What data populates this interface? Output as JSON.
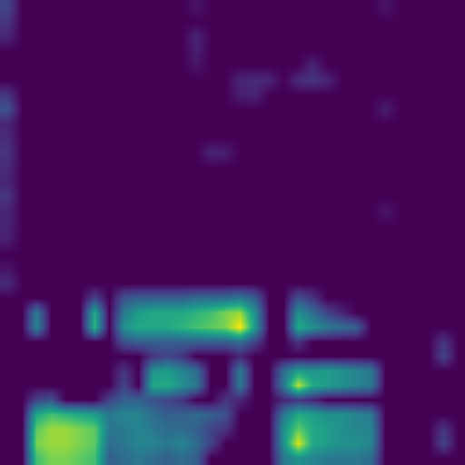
{
  "chart_data": {
    "type": "heatmap",
    "color": "Viridis",
    "tick_labels": false,
    "grid": false,
    "xlim": [
      -0.5,
      31.5
    ],
    "ylim": [
      31.5,
      -0.5
    ],
    "color_range": [
      0,
      1
    ],
    "cells": [
      [
        0.2,
        0,
        0,
        0,
        0,
        0,
        0,
        0,
        0,
        0,
        0,
        0,
        0,
        0.05,
        0,
        0,
        0,
        0,
        0,
        0,
        0,
        0,
        0,
        0,
        0,
        0,
        0.05,
        0,
        0,
        0,
        0,
        0
      ],
      [
        0.15,
        0,
        0,
        0,
        0,
        0,
        0,
        0,
        0,
        0,
        0,
        0,
        0,
        0,
        0,
        0,
        0,
        0,
        0,
        0,
        0,
        0,
        0,
        0,
        0,
        0,
        0,
        0,
        0,
        0,
        0,
        0
      ],
      [
        0.1,
        0,
        0,
        0,
        0,
        0,
        0,
        0,
        0,
        0,
        0,
        0,
        0,
        0.1,
        0,
        0,
        0,
        0,
        0,
        0,
        0,
        0,
        0,
        0,
        0,
        0,
        0,
        0,
        0,
        0,
        0,
        0
      ],
      [
        0,
        0,
        0,
        0,
        0,
        0,
        0,
        0,
        0,
        0,
        0,
        0,
        0,
        0.08,
        0,
        0,
        0,
        0,
        0,
        0,
        0,
        0,
        0,
        0,
        0,
        0,
        0,
        0,
        0,
        0,
        0,
        0
      ],
      [
        0,
        0,
        0,
        0,
        0,
        0,
        0,
        0,
        0,
        0,
        0,
        0,
        0,
        0.05,
        0,
        0,
        0,
        0,
        0,
        0,
        0,
        0.1,
        0,
        0,
        0,
        0,
        0,
        0,
        0,
        0,
        0,
        0
      ],
      [
        0,
        0,
        0,
        0,
        0,
        0,
        0,
        0,
        0,
        0,
        0,
        0,
        0,
        0,
        0,
        0,
        0.1,
        0.12,
        0.1,
        0,
        0.12,
        0.15,
        0.1,
        0,
        0,
        0,
        0,
        0,
        0,
        0,
        0,
        0
      ],
      [
        0.15,
        0,
        0,
        0,
        0,
        0,
        0,
        0,
        0,
        0,
        0,
        0,
        0,
        0,
        0,
        0,
        0.08,
        0.1,
        0,
        0,
        0,
        0,
        0,
        0,
        0,
        0,
        0,
        0,
        0,
        0,
        0,
        0
      ],
      [
        0.25,
        0,
        0,
        0,
        0,
        0,
        0,
        0,
        0,
        0,
        0,
        0,
        0,
        0,
        0,
        0,
        0,
        0,
        0,
        0,
        0,
        0,
        0,
        0,
        0,
        0,
        0.08,
        0,
        0,
        0,
        0,
        0
      ],
      [
        0.1,
        0,
        0,
        0,
        0,
        0,
        0,
        0,
        0,
        0,
        0,
        0,
        0,
        0,
        0,
        0,
        0,
        0,
        0,
        0,
        0,
        0,
        0,
        0,
        0,
        0,
        0,
        0,
        0,
        0,
        0,
        0
      ],
      [
        0.12,
        0,
        0,
        0,
        0,
        0,
        0,
        0,
        0,
        0,
        0,
        0,
        0,
        0,
        0,
        0,
        0,
        0,
        0,
        0,
        0,
        0,
        0,
        0,
        0,
        0,
        0,
        0,
        0,
        0,
        0,
        0
      ],
      [
        0.15,
        0,
        0,
        0,
        0,
        0,
        0,
        0,
        0,
        0,
        0,
        0,
        0,
        0,
        0.1,
        0.08,
        0,
        0,
        0,
        0,
        0,
        0,
        0,
        0,
        0,
        0,
        0,
        0,
        0,
        0,
        0,
        0
      ],
      [
        0.12,
        0,
        0,
        0,
        0,
        0,
        0,
        0,
        0,
        0,
        0,
        0,
        0,
        0,
        0,
        0,
        0,
        0,
        0,
        0,
        0,
        0,
        0,
        0,
        0,
        0,
        0,
        0,
        0,
        0,
        0,
        0
      ],
      [
        0.1,
        0,
        0,
        0,
        0,
        0,
        0,
        0,
        0,
        0,
        0,
        0,
        0,
        0,
        0,
        0,
        0,
        0,
        0,
        0,
        0,
        0,
        0,
        0,
        0,
        0,
        0,
        0,
        0,
        0,
        0,
        0
      ],
      [
        0.15,
        0,
        0,
        0,
        0,
        0,
        0,
        0,
        0,
        0,
        0,
        0,
        0,
        0,
        0,
        0,
        0,
        0,
        0,
        0,
        0,
        0,
        0,
        0,
        0,
        0,
        0,
        0,
        0,
        0,
        0,
        0
      ],
      [
        0.1,
        0,
        0,
        0,
        0,
        0,
        0,
        0,
        0,
        0,
        0,
        0,
        0,
        0,
        0,
        0,
        0,
        0,
        0,
        0,
        0,
        0,
        0,
        0,
        0,
        0,
        0.06,
        0,
        0,
        0,
        0,
        0
      ],
      [
        0.1,
        0,
        0,
        0,
        0,
        0,
        0,
        0,
        0,
        0,
        0,
        0,
        0,
        0,
        0,
        0,
        0,
        0,
        0,
        0,
        0,
        0,
        0,
        0,
        0,
        0,
        0,
        0,
        0,
        0,
        0,
        0
      ],
      [
        0.08,
        0,
        0,
        0,
        0,
        0,
        0,
        0,
        0,
        0,
        0,
        0,
        0,
        0,
        0,
        0,
        0,
        0,
        0,
        0,
        0,
        0,
        0,
        0,
        0,
        0,
        0,
        0,
        0,
        0,
        0,
        0
      ],
      [
        0,
        0,
        0,
        0,
        0,
        0,
        0,
        0,
        0,
        0,
        0,
        0,
        0,
        0,
        0,
        0,
        0,
        0,
        0,
        0,
        0,
        0,
        0,
        0,
        0,
        0,
        0,
        0,
        0,
        0,
        0,
        0
      ],
      [
        0.05,
        0,
        0,
        0,
        0,
        0,
        0,
        0,
        0,
        0,
        0,
        0,
        0,
        0,
        0,
        0,
        0,
        0,
        0,
        0,
        0,
        0,
        0,
        0,
        0,
        0,
        0,
        0,
        0,
        0,
        0,
        0
      ],
      [
        0.12,
        0,
        0,
        0,
        0,
        0,
        0,
        0,
        0,
        0,
        0,
        0,
        0,
        0,
        0,
        0,
        0,
        0,
        0,
        0,
        0,
        0,
        0,
        0,
        0,
        0,
        0,
        0,
        0,
        0,
        0,
        0
      ],
      [
        0,
        0,
        0,
        0,
        0,
        0,
        0.2,
        0,
        0.25,
        0.3,
        0.3,
        0.3,
        0.3,
        0.35,
        0.35,
        0.35,
        0.4,
        0.3,
        0,
        0,
        0.25,
        0.15,
        0,
        0,
        0,
        0,
        0,
        0,
        0,
        0,
        0,
        0
      ],
      [
        0,
        0,
        0.4,
        0,
        0,
        0,
        0.6,
        0,
        0.4,
        0.55,
        0.6,
        0.6,
        0.6,
        0.65,
        0.7,
        0.8,
        0.85,
        0.5,
        0,
        0,
        0.5,
        0.35,
        0.2,
        0.1,
        0,
        0,
        0,
        0,
        0,
        0,
        0,
        0
      ],
      [
        0,
        0,
        0.45,
        0,
        0,
        0,
        0.65,
        0,
        0.5,
        0.6,
        0.6,
        0.6,
        0.65,
        0.7,
        0.75,
        0.8,
        1,
        0.55,
        0,
        0,
        0.6,
        0.5,
        0.4,
        0.35,
        0.3,
        0,
        0,
        0,
        0,
        0,
        0,
        0
      ],
      [
        0,
        0,
        0,
        0,
        0,
        0,
        0,
        0,
        0.25,
        0.3,
        0.3,
        0.3,
        0.3,
        0.3,
        0.3,
        0.3,
        0.35,
        0.2,
        0,
        0,
        0.15,
        0,
        0,
        0,
        0,
        0,
        0,
        0,
        0,
        0,
        0.15,
        0
      ],
      [
        0,
        0,
        0,
        0,
        0,
        0,
        0,
        0,
        0,
        0,
        0.15,
        0.2,
        0.15,
        0,
        0,
        0,
        0.1,
        0,
        0,
        0,
        0,
        0,
        0,
        0,
        0,
        0,
        0,
        0,
        0,
        0,
        0.2,
        0
      ],
      [
        0,
        0,
        0,
        0,
        0,
        0,
        0,
        0,
        0.15,
        0,
        0.5,
        0.55,
        0.45,
        0.35,
        0,
        0,
        0.4,
        0,
        0,
        0.35,
        0.55,
        0.5,
        0.55,
        0.5,
        0.45,
        0.4,
        0,
        0,
        0,
        0,
        0,
        0
      ],
      [
        0,
        0,
        0,
        0,
        0,
        0,
        0,
        0,
        0.2,
        0,
        0.6,
        0.6,
        0.5,
        0.4,
        0,
        0,
        0.4,
        0,
        0,
        0.4,
        0.9,
        0.6,
        0.55,
        0.5,
        0.45,
        0.4,
        0,
        0,
        0,
        0,
        0,
        0
      ],
      [
        0,
        0,
        0.2,
        0.25,
        0,
        0,
        0,
        0.2,
        0.3,
        0.3,
        0.25,
        0.2,
        0.15,
        0,
        0,
        0.15,
        0.1,
        0,
        0,
        0.1,
        0.15,
        0.1,
        0,
        0,
        0,
        0,
        0,
        0,
        0,
        0,
        0,
        0
      ],
      [
        0,
        0,
        0.6,
        0.7,
        0.65,
        0.6,
        0.55,
        0.4,
        0.45,
        0.45,
        0.35,
        0.3,
        0.3,
        0.35,
        0.3,
        0.25,
        0,
        0,
        0,
        0.4,
        0.6,
        0.55,
        0.5,
        0.5,
        0.45,
        0.4,
        0,
        0,
        0,
        0,
        0,
        0
      ],
      [
        0,
        0,
        0.75,
        0.85,
        0.85,
        0.8,
        0.75,
        0.4,
        0.4,
        0.45,
        0.4,
        0.35,
        0.35,
        0.3,
        0.2,
        0.15,
        0,
        0,
        0,
        0.5,
        0.75,
        0.6,
        0.55,
        0.5,
        0.45,
        0.45,
        0,
        0,
        0,
        0,
        0.15,
        0
      ],
      [
        0,
        0,
        0.8,
        0.85,
        0.85,
        0.8,
        0.75,
        0.35,
        0.4,
        0.45,
        0.45,
        0.4,
        0.45,
        0.35,
        0.2,
        0,
        0,
        0,
        0,
        0.5,
        0.95,
        0.6,
        0.55,
        0.5,
        0.5,
        0.45,
        0,
        0,
        0,
        0,
        0.2,
        0
      ],
      [
        0,
        0,
        0.7,
        0.8,
        0.8,
        0.75,
        0.7,
        0.3,
        0.35,
        0.4,
        0.35,
        0.3,
        0.35,
        0.3,
        0,
        0,
        0,
        0,
        0,
        0.4,
        0.5,
        0.45,
        0.4,
        0.4,
        0.4,
        0.35,
        0,
        0,
        0,
        0,
        0,
        0
      ]
    ]
  }
}
